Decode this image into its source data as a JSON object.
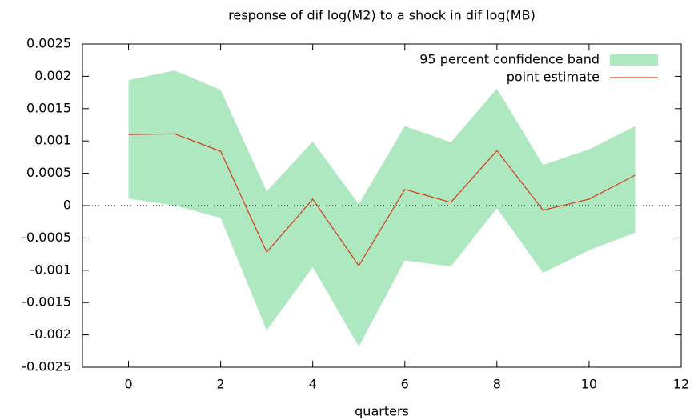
{
  "chart_data": {
    "type": "line",
    "title": "response of dif log(M2) to a shock in dif log(MB)",
    "xlabel": "quarters",
    "x": [
      0,
      1,
      2,
      3,
      4,
      5,
      6,
      7,
      8,
      9,
      10,
      11
    ],
    "series": [
      {
        "name": "95 percent confidence band",
        "type": "band",
        "color": "#ade8c1",
        "lower": [
          0.00011,
          0.0,
          -0.00019,
          -0.00193,
          -0.00095,
          -0.00218,
          -0.00085,
          -0.00094,
          -4e-05,
          -0.00104,
          -0.00069,
          -0.00042
        ],
        "upper": [
          0.00194,
          0.00209,
          0.00179,
          0.00022,
          0.00099,
          2e-05,
          0.00123,
          0.00098,
          0.00181,
          0.00063,
          0.00087,
          0.00123
        ]
      },
      {
        "name": "point estimate",
        "type": "line",
        "color": "#d83b1a",
        "values": [
          0.0011,
          0.00111,
          0.00084,
          -0.00072,
          0.0001,
          -0.00093,
          0.00025,
          5e-05,
          0.00085,
          -7e-05,
          0.0001,
          0.00047
        ]
      }
    ],
    "xlim": [
      -1,
      12
    ],
    "xticks": [
      0,
      2,
      4,
      6,
      8,
      10,
      12
    ],
    "ylim": [
      -0.0025,
      0.0025
    ],
    "yticks": [
      -0.0025,
      -0.002,
      -0.0015,
      -0.001,
      -0.0005,
      0,
      0.0005,
      0.001,
      0.0015,
      0.002,
      0.0025
    ],
    "zero_line": true,
    "legend": "top-right"
  }
}
